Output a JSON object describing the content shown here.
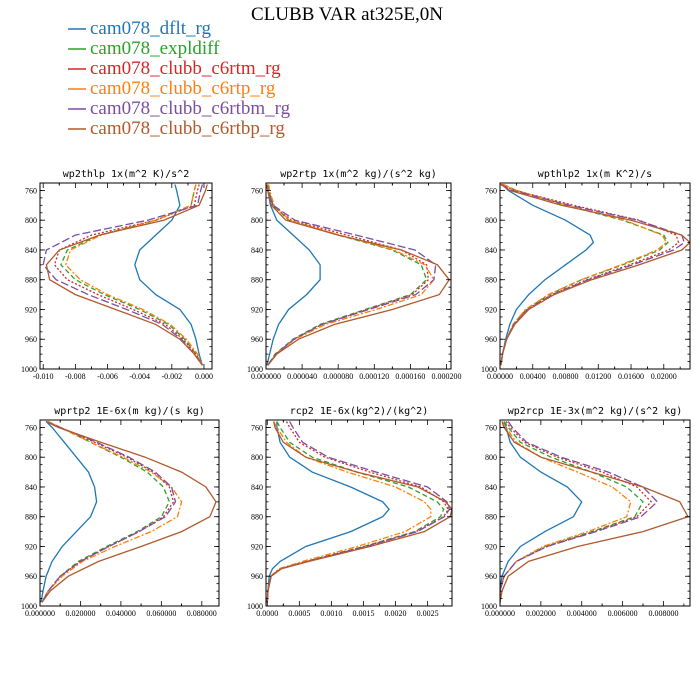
{
  "title": "CLUBB VAR at325E,0N",
  "legend": [
    {
      "label": "cam078_dflt_rg",
      "color": "#1f77b4",
      "dash": "solid"
    },
    {
      "label": "cam078_expldiff",
      "color": "#2ca02c",
      "dash": "dashed"
    },
    {
      "label": "cam078_clubb_c6rtm_rg",
      "color": "#d62728",
      "dash": "dotted"
    },
    {
      "label": "cam078_clubb_c6rtp_rg",
      "color": "#ff7f0e",
      "dash": "dashdot"
    },
    {
      "label": "cam078_clubb_c6rtbm_rg",
      "color": "#7b4ea3",
      "dash": "longdash"
    },
    {
      "label": "cam078_clubb_c6rtbp_rg",
      "color": "#b05a2d",
      "dash": "solid"
    }
  ],
  "chart_data": [
    {
      "type": "line",
      "title": "wp2thlp   1x(m^2 K)/s^2",
      "xlim": [
        -0.0102,
        0.0005
      ],
      "ylim": [
        750,
        1000
      ],
      "y_inverted": true,
      "xticks": [
        -0.01,
        -0.008,
        -0.006,
        -0.004,
        -0.002,
        0.0
      ],
      "xtick_labels": [
        "-0.010",
        "-0.008",
        "-0.006",
        "-0.004",
        "-0.002",
        "0.000"
      ],
      "yticks": [
        760,
        800,
        840,
        880,
        920,
        960,
        1000
      ],
      "ytick_labels": [
        "760",
        "800",
        "840",
        "880",
        "920",
        "960",
        "1000"
      ],
      "y": [
        752,
        760,
        780,
        800,
        820,
        840,
        860,
        880,
        900,
        920,
        940,
        960,
        980,
        995
      ],
      "series": [
        {
          "values": [
            -0.0018,
            -0.0017,
            -0.0015,
            -0.002,
            -0.003,
            -0.004,
            -0.0043,
            -0.004,
            -0.003,
            -0.0015,
            -0.0008,
            -0.0005,
            -0.0003,
            -0.0001
          ]
        },
        {
          "values": [
            -0.0005,
            -0.0006,
            -0.0008,
            -0.003,
            -0.0065,
            -0.0085,
            -0.0089,
            -0.008,
            -0.0062,
            -0.004,
            -0.0022,
            -0.0012,
            -0.0005,
            -0.0001
          ]
        },
        {
          "values": [
            -0.0003,
            -0.0004,
            -0.0006,
            -0.003,
            -0.007,
            -0.009,
            -0.0093,
            -0.0085,
            -0.0066,
            -0.0044,
            -0.0024,
            -0.0013,
            -0.0005,
            -0.0001
          ]
        },
        {
          "values": [
            -0.0005,
            -0.0006,
            -0.0008,
            -0.003,
            -0.0064,
            -0.0083,
            -0.0086,
            -0.0077,
            -0.006,
            -0.0038,
            -0.0021,
            -0.0011,
            -0.0004,
            -0.0001
          ]
        },
        {
          "values": [
            -0.0001,
            -0.0002,
            -0.0004,
            -0.0035,
            -0.008,
            -0.0098,
            -0.01,
            -0.0092,
            -0.0072,
            -0.0048,
            -0.0026,
            -0.0014,
            -0.0006,
            -0.0001
          ]
        },
        {
          "values": [
            0.0002,
            0.0001,
            -0.0003,
            -0.0025,
            -0.0065,
            -0.009,
            -0.0098,
            -0.0096,
            -0.008,
            -0.0055,
            -0.003,
            -0.0015,
            -0.0006,
            -0.0001
          ]
        }
      ]
    },
    {
      "type": "line",
      "title": "wp2rtp   1x(m^2 kg)/(s^2 kg)",
      "xlim": [
        0,
        0.000205
      ],
      "ylim": [
        750,
        1000
      ],
      "y_inverted": true,
      "xticks": [
        0,
        4e-05,
        8e-05,
        0.00012,
        0.00016,
        0.0002
      ],
      "xtick_labels": [
        "0.000000",
        "0.000040",
        "0.000080",
        "0.000120",
        "0.000160",
        "0.000200"
      ],
      "yticks": [
        760,
        800,
        840,
        880,
        920,
        960,
        1000
      ],
      "ytick_labels": [
        "760",
        "800",
        "840",
        "880",
        "920",
        "960",
        "1000"
      ],
      "y": [
        752,
        760,
        780,
        800,
        820,
        840,
        860,
        880,
        900,
        920,
        940,
        960,
        980,
        995
      ],
      "series": [
        {
          "values": [
            1e-06,
            2e-06,
            5e-06,
            1.2e-05,
            3e-05,
            4.8e-05,
            6e-05,
            6e-05,
            4.5e-05,
            2.5e-05,
            1.4e-05,
            8e-06,
            4e-06,
            1e-06
          ]
        },
        {
          "values": [
            2e-06,
            3e-06,
            8e-06,
            2.5e-05,
            8e-05,
            0.00014,
            0.000172,
            0.000178,
            0.00016,
            0.00011,
            6e-05,
            3e-05,
            1e-05,
            2e-06
          ]
        },
        {
          "values": [
            1e-06,
            2e-06,
            7e-06,
            2.8e-05,
            9e-05,
            0.00015,
            0.000178,
            0.00018,
            0.000162,
            0.000112,
            6.2e-05,
            3.1e-05,
            1.1e-05,
            2e-06
          ]
        },
        {
          "values": [
            3e-06,
            4e-06,
            9e-06,
            2.6e-05,
            8.2e-05,
            0.000142,
            0.000176,
            0.000186,
            0.000172,
            0.000122,
            6.6e-05,
            3.2e-05,
            1.1e-05,
            2e-06
          ]
        },
        {
          "values": [
            1e-06,
            2e-06,
            8e-06,
            3.2e-05,
            0.0001,
            0.000165,
            0.000188,
            0.000186,
            0.000166,
            0.000114,
            6.2e-05,
            3.1e-05,
            1.1e-05,
            2e-06
          ]
        },
        {
          "values": [
            1e-06,
            2e-06,
            6e-06,
            2.2e-05,
            8e-05,
            0.00015,
            0.00019,
            0.000203,
            0.000192,
            0.00014,
            7.6e-05,
            3.6e-05,
            1.2e-05,
            2e-06
          ]
        }
      ]
    },
    {
      "type": "line",
      "title": "wpthlp2   1x(m K^2)/s",
      "xlim": [
        0,
        0.0232
      ],
      "ylim": [
        750,
        1000
      ],
      "y_inverted": true,
      "xticks": [
        0,
        0.004,
        0.008,
        0.012,
        0.016,
        0.02
      ],
      "xtick_labels": [
        "0.00000",
        "0.00400",
        "0.00800",
        "0.01200",
        "0.01600",
        "0.02000"
      ],
      "yticks": [
        760,
        800,
        840,
        880,
        920,
        960,
        1000
      ],
      "ytick_labels": [
        "760",
        "800",
        "840",
        "880",
        "920",
        "960",
        "1000"
      ],
      "y": [
        752,
        760,
        780,
        800,
        820,
        830,
        840,
        860,
        880,
        900,
        920,
        940,
        960,
        980,
        995
      ],
      "series": [
        {
          "values": [
            0.0003,
            0.001,
            0.004,
            0.008,
            0.011,
            0.0114,
            0.0105,
            0.008,
            0.0055,
            0.0035,
            0.002,
            0.0012,
            0.0007,
            0.0003,
            0.0001
          ]
        },
        {
          "values": [
            0.0004,
            0.002,
            0.008,
            0.015,
            0.02,
            0.0205,
            0.0195,
            0.015,
            0.01,
            0.006,
            0.0032,
            0.0016,
            0.0008,
            0.0003,
            0.0001
          ]
        },
        {
          "values": [
            0.0002,
            0.0018,
            0.009,
            0.017,
            0.0215,
            0.0218,
            0.0206,
            0.0158,
            0.0106,
            0.0063,
            0.0033,
            0.0017,
            0.0008,
            0.0003,
            0.0001
          ]
        },
        {
          "values": [
            0.0004,
            0.002,
            0.0082,
            0.0152,
            0.0198,
            0.0203,
            0.0192,
            0.0148,
            0.0099,
            0.0059,
            0.0031,
            0.0016,
            0.0008,
            0.0003,
            0.0001
          ]
        },
        {
          "values": [
            0.0001,
            0.0015,
            0.0085,
            0.0168,
            0.0222,
            0.0225,
            0.0212,
            0.0162,
            0.0108,
            0.0064,
            0.0034,
            0.0017,
            0.0008,
            0.0003,
            0.0001
          ]
        },
        {
          "values": [
            0.0001,
            0.0012,
            0.0075,
            0.016,
            0.0222,
            0.0232,
            0.0222,
            0.017,
            0.0112,
            0.0066,
            0.0035,
            0.0018,
            0.0008,
            0.0003,
            0.0001
          ]
        }
      ]
    },
    {
      "type": "line",
      "title": "wprtp2   1E-6x(m kg)/(s kg)",
      "xlim": [
        0,
        0.0885
      ],
      "ylim": [
        750,
        1000
      ],
      "y_inverted": true,
      "xticks": [
        0,
        0.02,
        0.04,
        0.06,
        0.08
      ],
      "xtick_labels": [
        "0.000000",
        "0.020000",
        "0.040000",
        "0.060000",
        "0.080000"
      ],
      "yticks": [
        760,
        800,
        840,
        880,
        920,
        960,
        1000
      ],
      "ytick_labels": [
        "760",
        "800",
        "840",
        "880",
        "920",
        "960",
        "1000"
      ],
      "y": [
        752,
        760,
        780,
        800,
        820,
        840,
        860,
        880,
        900,
        920,
        940,
        960,
        980,
        995
      ],
      "series": [
        {
          "values": [
            0.003,
            0.006,
            0.012,
            0.018,
            0.024,
            0.027,
            0.028,
            0.025,
            0.018,
            0.011,
            0.006,
            0.003,
            0.0015,
            0.0005
          ]
        },
        {
          "values": [
            0.004,
            0.01,
            0.025,
            0.04,
            0.053,
            0.061,
            0.064,
            0.06,
            0.048,
            0.033,
            0.019,
            0.01,
            0.004,
            0.001
          ]
        },
        {
          "values": [
            0.003,
            0.01,
            0.027,
            0.043,
            0.056,
            0.064,
            0.066,
            0.061,
            0.049,
            0.034,
            0.02,
            0.01,
            0.004,
            0.001
          ]
        },
        {
          "values": [
            0.004,
            0.01,
            0.025,
            0.041,
            0.055,
            0.065,
            0.07,
            0.068,
            0.055,
            0.037,
            0.021,
            0.011,
            0.004,
            0.001
          ]
        },
        {
          "values": [
            0.003,
            0.01,
            0.028,
            0.044,
            0.057,
            0.065,
            0.067,
            0.062,
            0.049,
            0.034,
            0.02,
            0.01,
            0.004,
            0.001
          ]
        },
        {
          "values": [
            0.003,
            0.009,
            0.03,
            0.052,
            0.07,
            0.082,
            0.087,
            0.084,
            0.07,
            0.05,
            0.029,
            0.014,
            0.005,
            0.001
          ]
        }
      ]
    },
    {
      "type": "line",
      "title": "rcp2   1E-6x(kg^2)/(kg^2)",
      "xlim": [
        -2e-05,
        0.00288
      ],
      "ylim": [
        750,
        1000
      ],
      "y_inverted": true,
      "xticks": [
        0,
        0.0005,
        0.001,
        0.0015,
        0.002,
        0.0025
      ],
      "xtick_labels": [
        "0.0000",
        "0.0005",
        "0.0010",
        "0.0015",
        "0.0020",
        "0.0025"
      ],
      "yticks": [
        760,
        800,
        840,
        880,
        920,
        960,
        1000
      ],
      "ytick_labels": [
        "760",
        "800",
        "840",
        "880",
        "920",
        "960",
        "1000"
      ],
      "y": [
        752,
        760,
        780,
        800,
        820,
        840,
        860,
        870,
        880,
        900,
        920,
        940,
        950,
        960,
        980,
        995
      ],
      "series": [
        {
          "values": [
            0.00015,
            0.00015,
            0.0002,
            0.00035,
            0.0007,
            0.0013,
            0.0018,
            0.0019,
            0.0018,
            0.0013,
            0.0006,
            0.0002,
            8e-05,
            3e-05,
            1e-05,
            0.0
          ]
        },
        {
          "values": [
            0.00015,
            0.0002,
            0.00035,
            0.0007,
            0.0014,
            0.0022,
            0.00265,
            0.00275,
            0.0027,
            0.0023,
            0.0015,
            0.0006,
            0.0002,
            6e-05,
            1e-05,
            0.0
          ]
        },
        {
          "values": [
            0.0003,
            0.00035,
            0.0005,
            0.0009,
            0.0016,
            0.0024,
            0.00275,
            0.00282,
            0.00275,
            0.00232,
            0.00152,
            0.00062,
            0.00021,
            6e-05,
            1e-05,
            0.0
          ]
        },
        {
          "values": [
            0.0001,
            0.00015,
            0.0003,
            0.0006,
            0.00125,
            0.002,
            0.00245,
            0.00255,
            0.00255,
            0.00215,
            0.0014,
            0.00055,
            0.00018,
            5e-05,
            1e-05,
            0.0
          ]
        },
        {
          "values": [
            0.00035,
            0.0004,
            0.00055,
            0.00095,
            0.0017,
            0.0025,
            0.0028,
            0.00284,
            0.00276,
            0.00234,
            0.00154,
            0.00063,
            0.00021,
            6e-05,
            1e-05,
            0.0
          ]
        },
        {
          "values": [
            0.0001,
            0.00012,
            0.00025,
            0.0006,
            0.0014,
            0.00235,
            0.00278,
            0.00288,
            0.00285,
            0.00245,
            0.0016,
            0.00065,
            0.00022,
            6e-05,
            1e-05,
            0.0
          ]
        }
      ]
    },
    {
      "type": "line",
      "title": "wp2rcp   1E-3x(m^2 kg)/(s^2 kg)",
      "xlim": [
        0,
        0.0093
      ],
      "ylim": [
        750,
        1000
      ],
      "y_inverted": true,
      "xticks": [
        0,
        0.002,
        0.004,
        0.006,
        0.008
      ],
      "xtick_labels": [
        "0.000000",
        "0.002000",
        "0.004000",
        "0.006000",
        "0.008000"
      ],
      "yticks": [
        760,
        800,
        840,
        880,
        920,
        960,
        1000
      ],
      "ytick_labels": [
        "760",
        "800",
        "840",
        "880",
        "920",
        "960",
        "1000"
      ],
      "y": [
        752,
        760,
        780,
        800,
        820,
        840,
        860,
        880,
        900,
        920,
        940,
        960,
        980,
        995
      ],
      "series": [
        {
          "values": [
            0.0002,
            0.0003,
            0.0005,
            0.001,
            0.002,
            0.0033,
            0.004,
            0.0036,
            0.0022,
            0.001,
            0.0004,
            0.0001,
            0.0,
            0.0
          ]
        },
        {
          "values": [
            0.0002,
            0.0004,
            0.001,
            0.0025,
            0.0045,
            0.0062,
            0.007,
            0.0066,
            0.0045,
            0.0022,
            0.0008,
            0.0002,
            0.0,
            0.0
          ]
        },
        {
          "values": [
            0.0003,
            0.0005,
            0.0012,
            0.0028,
            0.005,
            0.0067,
            0.0074,
            0.0067,
            0.0046,
            0.0023,
            0.0008,
            0.0002,
            0.0,
            0.0
          ]
        },
        {
          "values": [
            0.0001,
            0.0003,
            0.0008,
            0.002,
            0.0038,
            0.0055,
            0.0064,
            0.0062,
            0.0043,
            0.0021,
            0.0008,
            0.0002,
            0.0,
            0.0
          ]
        },
        {
          "values": [
            0.0004,
            0.0006,
            0.0013,
            0.003,
            0.0053,
            0.007,
            0.0077,
            0.0069,
            0.0047,
            0.0023,
            0.0008,
            0.0002,
            0.0,
            0.0
          ]
        },
        {
          "values": [
            0.0001,
            0.0002,
            0.0007,
            0.002,
            0.0045,
            0.007,
            0.0088,
            0.0092,
            0.007,
            0.0038,
            0.0014,
            0.0004,
            0.0001,
            0.0
          ]
        }
      ]
    }
  ]
}
